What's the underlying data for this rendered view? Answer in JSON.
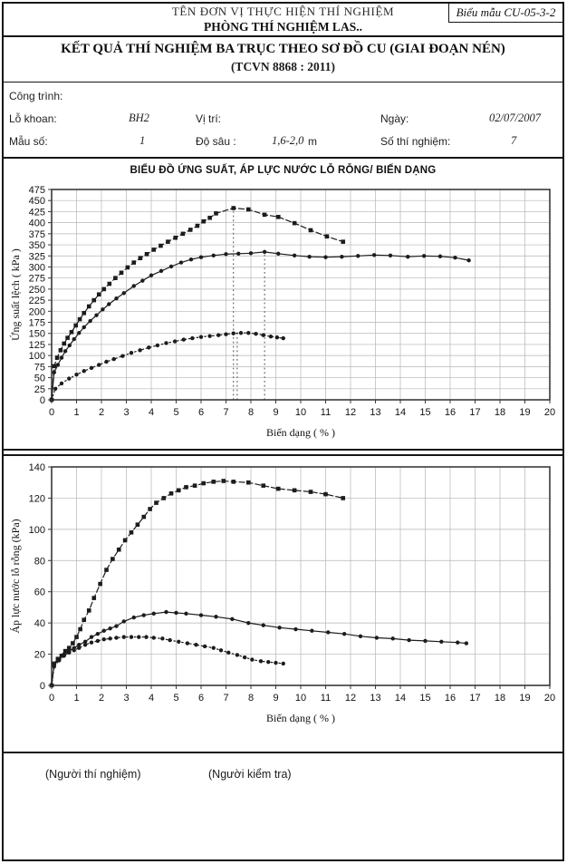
{
  "form_badge": "Biểu mẫu CU-05-3-2",
  "header": {
    "org_line": "TÊN ĐƠN VỊ THỰC HIỆN THÍ NGHIỆM",
    "lab_line": "PHÒNG THÍ NGHIỆM LAS..",
    "title": "KẾT QUẢ THÍ NGHIỆM BA TRỤC THEO SƠ ĐỒ CU (GIAI ĐOẠN NÉN)",
    "standard": "(TCVN 8868 : 2011)"
  },
  "info": {
    "cong_trinh_label": "Công trình:",
    "lo_khoan_label": "Lỗ khoan:",
    "lo_khoan_value": "BH2",
    "vi_tri_label": "Vị trí:",
    "ngay_label": "Ngày:",
    "ngay_value": "02/07/2007",
    "mau_so_label": "Mẫu số:",
    "mau_so_value": "1",
    "do_sau_label": "Độ sâu :",
    "do_sau_value": "1,6-2,0",
    "do_sau_unit": "m",
    "so_thi_nghiem_label": "Số thí nghiệm:",
    "so_thi_nghiem_value": "7"
  },
  "charts_title": "BIỂU ĐỒ ỨNG SUẤT, ÁP LỰC NƯỚC LỖ RỖNG/ BIẾN DẠNG",
  "footer": {
    "tester_label": "(Người thí nghiệm)",
    "checker_label": "(Người kiểm tra)"
  },
  "chart_data": [
    {
      "type": "line",
      "title": "",
      "xlabel": "Biến dạng  ( % )",
      "ylabel": "Ứng suất lệch ( kPa )",
      "xlim": [
        0,
        20
      ],
      "ylim": [
        0,
        475
      ],
      "x_tick_step": 1,
      "y_tick_step": 25,
      "grid": true,
      "legend": "none",
      "ref_lines": [
        {
          "x": 7.3,
          "y_top": 433
        },
        {
          "x": 7.45,
          "y_top": 151
        },
        {
          "x": 8.55,
          "y_top": 334
        }
      ],
      "series": [
        {
          "name": "series-1",
          "style": "dashed",
          "marker": "square",
          "points": [
            [
              0,
              0
            ],
            [
              0.1,
              76
            ],
            [
              0.22,
              95
            ],
            [
              0.36,
              112
            ],
            [
              0.5,
              127
            ],
            [
              0.64,
              140
            ],
            [
              0.8,
              153
            ],
            [
              0.97,
              168
            ],
            [
              1.13,
              182
            ],
            [
              1.3,
              196
            ],
            [
              1.5,
              211
            ],
            [
              1.7,
              225
            ],
            [
              1.9,
              238
            ],
            [
              2.1,
              250
            ],
            [
              2.32,
              262
            ],
            [
              2.56,
              275
            ],
            [
              2.8,
              287
            ],
            [
              3.05,
              299
            ],
            [
              3.3,
              310
            ],
            [
              3.56,
              320
            ],
            [
              3.82,
              329
            ],
            [
              4.1,
              339
            ],
            [
              4.38,
              348
            ],
            [
              4.67,
              357
            ],
            [
              4.97,
              366
            ],
            [
              5.27,
              375
            ],
            [
              5.57,
              384
            ],
            [
              5.85,
              393
            ],
            [
              6.1,
              403
            ],
            [
              6.35,
              411
            ],
            [
              6.6,
              421
            ],
            [
              7.3,
              433
            ],
            [
              7.9,
              430
            ],
            [
              8.55,
              418
            ],
            [
              9.1,
              413
            ],
            [
              9.75,
              399
            ],
            [
              10.4,
              383
            ],
            [
              11.05,
              369
            ],
            [
              11.7,
              357
            ]
          ]
        },
        {
          "name": "series-2",
          "style": "solid",
          "marker": "circle",
          "points": [
            [
              0,
              0
            ],
            [
              0.1,
              62
            ],
            [
              0.25,
              79
            ],
            [
              0.4,
              95
            ],
            [
              0.55,
              110
            ],
            [
              0.72,
              123
            ],
            [
              0.9,
              137
            ],
            [
              1.1,
              151
            ],
            [
              1.3,
              164
            ],
            [
              1.55,
              178
            ],
            [
              1.8,
              191
            ],
            [
              2.05,
              204
            ],
            [
              2.3,
              216
            ],
            [
              2.6,
              229
            ],
            [
              2.9,
              241
            ],
            [
              3.3,
              257
            ],
            [
              3.65,
              269
            ],
            [
              4.0,
              281
            ],
            [
              4.4,
              291
            ],
            [
              4.8,
              301
            ],
            [
              5.2,
              310
            ],
            [
              5.6,
              317
            ],
            [
              6.0,
              322
            ],
            [
              6.5,
              326
            ],
            [
              7.0,
              329
            ],
            [
              7.5,
              330
            ],
            [
              8.0,
              331
            ],
            [
              8.55,
              334
            ],
            [
              9.1,
              330
            ],
            [
              9.75,
              326
            ],
            [
              10.35,
              323
            ],
            [
              11.0,
              322
            ],
            [
              11.65,
              323
            ],
            [
              12.3,
              325
            ],
            [
              12.95,
              327
            ],
            [
              13.6,
              326
            ],
            [
              14.3,
              323
            ],
            [
              14.95,
              325
            ],
            [
              15.6,
              324
            ],
            [
              16.2,
              321
            ],
            [
              16.75,
              315
            ]
          ]
        },
        {
          "name": "series-3",
          "style": "dotted",
          "marker": "circle",
          "points": [
            [
              0,
              0
            ],
            [
              0.15,
              25
            ],
            [
              0.4,
              37
            ],
            [
              0.7,
              48
            ],
            [
              1.0,
              57
            ],
            [
              1.3,
              65
            ],
            [
              1.6,
              72
            ],
            [
              1.9,
              79
            ],
            [
              2.2,
              86
            ],
            [
              2.5,
              92
            ],
            [
              2.85,
              99
            ],
            [
              3.2,
              106
            ],
            [
              3.55,
              112
            ],
            [
              3.9,
              118
            ],
            [
              4.25,
              123
            ],
            [
              4.6,
              128
            ],
            [
              4.95,
              132
            ],
            [
              5.3,
              136
            ],
            [
              5.65,
              139
            ],
            [
              6.0,
              142
            ],
            [
              6.35,
              144
            ],
            [
              6.7,
              146
            ],
            [
              7.0,
              148
            ],
            [
              7.3,
              150
            ],
            [
              7.6,
              151
            ],
            [
              7.9,
              151
            ],
            [
              8.2,
              149
            ],
            [
              8.5,
              146
            ],
            [
              8.8,
              143
            ],
            [
              9.05,
              141
            ],
            [
              9.3,
              139
            ]
          ]
        }
      ]
    },
    {
      "type": "line",
      "title": "",
      "xlabel": "Biến dạng  ( % )",
      "ylabel": "Áp lực nước lỗ rỗng (kPa)",
      "xlim": [
        0,
        20
      ],
      "ylim": [
        0,
        140
      ],
      "x_tick_step": 1,
      "y_tick_step": 20,
      "grid": true,
      "legend": "none",
      "ref_lines": [],
      "series": [
        {
          "name": "series-1",
          "style": "dashed",
          "marker": "square",
          "points": [
            [
              0,
              0
            ],
            [
              0.1,
              14
            ],
            [
              0.25,
              17
            ],
            [
              0.4,
              19
            ],
            [
              0.55,
              22
            ],
            [
              0.7,
              24
            ],
            [
              0.85,
              27
            ],
            [
              1.0,
              31
            ],
            [
              1.15,
              36
            ],
            [
              1.3,
              42
            ],
            [
              1.5,
              48
            ],
            [
              1.7,
              56
            ],
            [
              1.95,
              65
            ],
            [
              2.2,
              74
            ],
            [
              2.45,
              81
            ],
            [
              2.7,
              87
            ],
            [
              2.95,
              93
            ],
            [
              3.2,
              98
            ],
            [
              3.45,
              103
            ],
            [
              3.7,
              108
            ],
            [
              3.95,
              113
            ],
            [
              4.2,
              117
            ],
            [
              4.5,
              120
            ],
            [
              4.8,
              123
            ],
            [
              5.1,
              125
            ],
            [
              5.4,
              127
            ],
            [
              5.75,
              128
            ],
            [
              6.1,
              129.5
            ],
            [
              6.5,
              130.5
            ],
            [
              6.9,
              131
            ],
            [
              7.3,
              130.5
            ],
            [
              7.9,
              130
            ],
            [
              8.5,
              128
            ],
            [
              9.1,
              126
            ],
            [
              9.75,
              125
            ],
            [
              10.4,
              124
            ],
            [
              11.0,
              122.5
            ],
            [
              11.7,
              120
            ]
          ]
        },
        {
          "name": "series-2",
          "style": "solid",
          "marker": "circle",
          "points": [
            [
              0,
              0
            ],
            [
              0.1,
              13
            ],
            [
              0.3,
              17
            ],
            [
              0.5,
              20
            ],
            [
              0.7,
              22
            ],
            [
              0.9,
              24
            ],
            [
              1.1,
              26
            ],
            [
              1.35,
              28
            ],
            [
              1.6,
              31
            ],
            [
              1.85,
              33
            ],
            [
              2.1,
              35
            ],
            [
              2.35,
              36.5
            ],
            [
              2.6,
              38
            ],
            [
              2.9,
              41
            ],
            [
              3.3,
              43.5
            ],
            [
              3.7,
              45
            ],
            [
              4.1,
              46
            ],
            [
              4.6,
              47
            ],
            [
              5.0,
              46.5
            ],
            [
              5.4,
              46
            ],
            [
              6.0,
              45
            ],
            [
              6.6,
              44
            ],
            [
              7.25,
              42.5
            ],
            [
              7.9,
              40
            ],
            [
              8.5,
              38.5
            ],
            [
              9.15,
              37
            ],
            [
              9.8,
              36
            ],
            [
              10.45,
              35
            ],
            [
              11.1,
              34
            ],
            [
              11.75,
              33
            ],
            [
              12.4,
              31.5
            ],
            [
              13.05,
              30.5
            ],
            [
              13.7,
              30
            ],
            [
              14.35,
              29
            ],
            [
              15.0,
              28.5
            ],
            [
              15.65,
              28
            ],
            [
              16.3,
              27.5
            ],
            [
              16.65,
              27
            ]
          ]
        },
        {
          "name": "series-3",
          "style": "dotted",
          "marker": "circle",
          "points": [
            [
              0,
              0
            ],
            [
              0.1,
              12
            ],
            [
              0.3,
              16
            ],
            [
              0.5,
              19
            ],
            [
              0.7,
              21
            ],
            [
              0.9,
              22.5
            ],
            [
              1.1,
              24
            ],
            [
              1.35,
              26
            ],
            [
              1.6,
              27.5
            ],
            [
              1.85,
              28.5
            ],
            [
              2.1,
              29.5
            ],
            [
              2.35,
              30
            ],
            [
              2.6,
              30.5
            ],
            [
              2.9,
              31
            ],
            [
              3.2,
              31
            ],
            [
              3.5,
              31
            ],
            [
              3.8,
              31
            ],
            [
              4.1,
              30.5
            ],
            [
              4.45,
              30
            ],
            [
              4.75,
              29
            ],
            [
              5.1,
              28
            ],
            [
              5.45,
              27
            ],
            [
              5.8,
              26
            ],
            [
              6.15,
              25
            ],
            [
              6.5,
              24
            ],
            [
              6.8,
              22.5
            ],
            [
              7.1,
              21
            ],
            [
              7.45,
              19.5
            ],
            [
              7.75,
              18
            ],
            [
              8.05,
              16.5
            ],
            [
              8.4,
              15.5
            ],
            [
              8.7,
              15
            ],
            [
              9.0,
              14.5
            ],
            [
              9.3,
              14
            ]
          ]
        }
      ]
    }
  ]
}
